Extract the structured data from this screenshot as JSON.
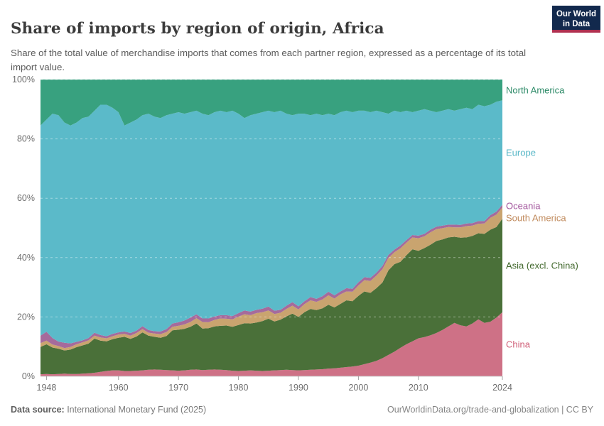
{
  "header": {
    "title": "Share of imports by region of origin, Africa",
    "subtitle": "Share of the total value of merchandise imports that comes from each partner region, expressed as a percentage of its total import value."
  },
  "logo": {
    "line1": "Our World",
    "line2": "in Data",
    "bg_color": "#12294d",
    "stripe_color": "#b03050"
  },
  "footer": {
    "source_label": "Data source:",
    "source_text": " International Monetary Fund (2025)",
    "link": "OurWorldinData.org/trade-and-globalization | CC BY"
  },
  "chart_data": {
    "type": "area",
    "stacked": true,
    "title": "Share of imports by region of origin, Africa",
    "xlabel": "",
    "ylabel": "",
    "ylim": [
      0,
      100
    ],
    "grid": "dashed",
    "legend_position": "right",
    "x_range": [
      1947,
      2024
    ],
    "x_ticks": [
      1948,
      1960,
      1970,
      1980,
      1990,
      2000,
      2010,
      2024
    ],
    "y_ticks": [
      {
        "value": 0,
        "label": "0%"
      },
      {
        "value": 20,
        "label": "20%"
      },
      {
        "value": 40,
        "label": "40%"
      },
      {
        "value": 60,
        "label": "60%"
      },
      {
        "value": 80,
        "label": "80%"
      },
      {
        "value": 100,
        "label": "100%"
      }
    ],
    "x": [
      1947,
      1948,
      1949,
      1950,
      1951,
      1952,
      1953,
      1954,
      1955,
      1956,
      1957,
      1958,
      1959,
      1960,
      1961,
      1962,
      1963,
      1964,
      1965,
      1966,
      1967,
      1968,
      1969,
      1970,
      1971,
      1972,
      1973,
      1974,
      1975,
      1976,
      1977,
      1978,
      1979,
      1980,
      1981,
      1982,
      1983,
      1984,
      1985,
      1986,
      1987,
      1988,
      1989,
      1990,
      1991,
      1992,
      1993,
      1994,
      1995,
      1996,
      1997,
      1998,
      1999,
      2000,
      2001,
      2002,
      2003,
      2004,
      2005,
      2006,
      2007,
      2008,
      2009,
      2010,
      2011,
      2012,
      2013,
      2014,
      2015,
      2016,
      2017,
      2018,
      2019,
      2020,
      2021,
      2022,
      2023,
      2024
    ],
    "series": [
      {
        "name": "China",
        "color": "#ce7186",
        "label_color": "#d06079",
        "values": [
          0.7,
          0.8,
          0.7,
          0.8,
          0.9,
          0.8,
          0.8,
          0.9,
          1.0,
          1.2,
          1.5,
          1.8,
          2.0,
          2.0,
          1.8,
          1.8,
          1.9,
          2.0,
          2.2,
          2.3,
          2.2,
          2.1,
          2.0,
          1.9,
          2.0,
          2.2,
          2.3,
          2.1,
          2.2,
          2.3,
          2.2,
          2.1,
          1.9,
          1.8,
          1.9,
          2.0,
          1.9,
          1.8,
          1.9,
          2.0,
          2.1,
          2.2,
          2.1,
          2.0,
          2.1,
          2.2,
          2.3,
          2.4,
          2.6,
          2.7,
          2.9,
          3.1,
          3.3,
          3.6,
          4.1,
          4.6,
          5.2,
          6.1,
          7.2,
          8.3,
          9.6,
          10.8,
          11.8,
          12.8,
          13.2,
          13.8,
          14.6,
          15.6,
          16.8,
          18.0,
          17.2,
          16.8,
          17.8,
          19.2,
          18.0,
          18.4,
          19.8,
          21.6
        ]
      },
      {
        "name": "Asia (excl. China)",
        "color": "#4a7039",
        "label_color": "#41682c",
        "values": [
          9.2,
          10.0,
          9.0,
          8.5,
          7.8,
          8.2,
          9.0,
          9.5,
          10.0,
          11.5,
          10.5,
          10.0,
          10.5,
          11.0,
          11.5,
          10.8,
          11.5,
          12.8,
          11.5,
          11.0,
          10.8,
          11.5,
          13.5,
          13.8,
          14.0,
          14.5,
          15.5,
          14.0,
          14.0,
          14.5,
          14.8,
          15.0,
          14.8,
          15.5,
          16.0,
          15.8,
          16.2,
          16.8,
          17.5,
          16.5,
          17.0,
          18.0,
          19.0,
          18.0,
          19.5,
          20.5,
          20.0,
          20.5,
          21.5,
          20.5,
          21.5,
          22.5,
          22.0,
          23.5,
          24.5,
          23.5,
          24.5,
          25.5,
          28.5,
          29.5,
          29.0,
          30.0,
          31.0,
          29.5,
          30.0,
          30.5,
          31.0,
          30.5,
          30.0,
          29.0,
          29.5,
          30.0,
          29.5,
          29.0,
          30.0,
          31.0,
          30.5,
          31.5
        ]
      },
      {
        "name": "South America",
        "color": "#c9a46f",
        "label_color": "#c08a5c",
        "values": [
          1.3,
          1.2,
          1.0,
          0.9,
          0.8,
          0.9,
          1.0,
          1.0,
          1.1,
          1.0,
          1.1,
          1.0,
          1.0,
          1.1,
          1.0,
          1.1,
          1.2,
          1.1,
          1.0,
          1.1,
          1.2,
          1.3,
          1.2,
          1.3,
          1.5,
          1.6,
          1.8,
          2.2,
          2.0,
          2.2,
          2.5,
          2.3,
          2.5,
          2.8,
          3.0,
          2.8,
          3.2,
          3.0,
          2.8,
          2.5,
          2.3,
          2.5,
          2.7,
          2.5,
          2.7,
          2.9,
          2.8,
          3.0,
          3.2,
          3.0,
          3.2,
          3.0,
          3.2,
          3.5,
          3.8,
          4.0,
          4.2,
          4.5,
          4.2,
          4.0,
          4.5,
          4.2,
          4.0,
          4.2,
          4.0,
          4.2,
          4.0,
          3.8,
          3.5,
          3.2,
          3.5,
          3.8,
          3.5,
          3.2,
          3.5,
          4.0,
          4.2,
          3.8
        ]
      },
      {
        "name": "Oceania",
        "color": "#a56b9c",
        "label_color": "#a2559c",
        "values": [
          2.5,
          3.0,
          2.2,
          1.5,
          1.8,
          1.2,
          0.8,
          0.7,
          0.8,
          1.0,
          0.8,
          0.7,
          0.8,
          0.7,
          0.8,
          0.9,
          0.8,
          1.0,
          0.9,
          0.8,
          0.9,
          1.0,
          1.1,
          1.2,
          1.3,
          1.5,
          1.3,
          1.2,
          1.3,
          1.2,
          1.1,
          1.2,
          1.1,
          1.2,
          1.3,
          1.2,
          1.1,
          1.2,
          1.3,
          1.1,
          1.0,
          1.1,
          1.2,
          1.1,
          1.0,
          1.1,
          1.0,
          1.1,
          1.2,
          1.1,
          1.0,
          1.1,
          1.0,
          1.1,
          1.0,
          1.1,
          1.0,
          1.1,
          1.0,
          0.9,
          1.0,
          0.9,
          0.8,
          0.9,
          0.8,
          0.9,
          0.8,
          0.9,
          0.8,
          0.9,
          0.8,
          0.9,
          0.8,
          0.9,
          0.8,
          0.9,
          1.0,
          0.9
        ]
      },
      {
        "name": "Europe",
        "color": "#5bbac9",
        "label_color": "#56b6c6",
        "values": [
          70.8,
          71.5,
          75.6,
          76.3,
          74.2,
          73.4,
          73.9,
          74.9,
          74.6,
          74.8,
          77.6,
          78.0,
          76.2,
          74.2,
          69.4,
          70.9,
          71.1,
          71.1,
          72.9,
          72.3,
          71.9,
          72.1,
          70.7,
          70.8,
          69.7,
          69.2,
          68.6,
          69.0,
          68.5,
          68.8,
          68.9,
          68.4,
          69.2,
          67.2,
          64.8,
          66.2,
          66.1,
          66.2,
          66.0,
          66.9,
          67.1,
          64.7,
          63.0,
          64.9,
          63.2,
          61.3,
          62.4,
          61.0,
          60.0,
          60.7,
          60.4,
          59.8,
          59.5,
          57.8,
          56.1,
          55.8,
          54.6,
          51.8,
          47.6,
          46.8,
          44.9,
          43.6,
          41.4,
          42.1,
          42.0,
          40.1,
          38.6,
          38.7,
          38.9,
          38.4,
          39.0,
          39.0,
          38.4,
          39.2,
          38.7,
          37.2,
          37.0,
          35.2
        ]
      },
      {
        "name": "North America",
        "color": "#38a17f",
        "label_color": "#2c8a67",
        "values": [
          15.5,
          13.5,
          11.5,
          12.0,
          14.5,
          15.5,
          14.5,
          13.0,
          12.5,
          10.5,
          8.5,
          8.5,
          9.5,
          11.0,
          15.5,
          14.5,
          13.5,
          12.0,
          11.5,
          12.5,
          13.0,
          12.0,
          11.5,
          11.0,
          11.5,
          11.0,
          10.5,
          11.5,
          12.0,
          11.0,
          10.5,
          11.0,
          10.5,
          11.5,
          13.0,
          12.0,
          11.5,
          11.0,
          10.5,
          11.0,
          10.5,
          11.5,
          12.0,
          11.5,
          11.5,
          12.0,
          11.5,
          12.0,
          11.5,
          12.0,
          11.0,
          10.5,
          11.0,
          10.5,
          10.5,
          11.0,
          10.5,
          11.0,
          11.5,
          10.5,
          11.0,
          10.5,
          11.0,
          10.5,
          10.0,
          10.5,
          11.0,
          10.5,
          10.0,
          10.5,
          10.0,
          9.5,
          10.0,
          8.5,
          9.0,
          8.5,
          7.5,
          7.0
        ]
      }
    ]
  }
}
